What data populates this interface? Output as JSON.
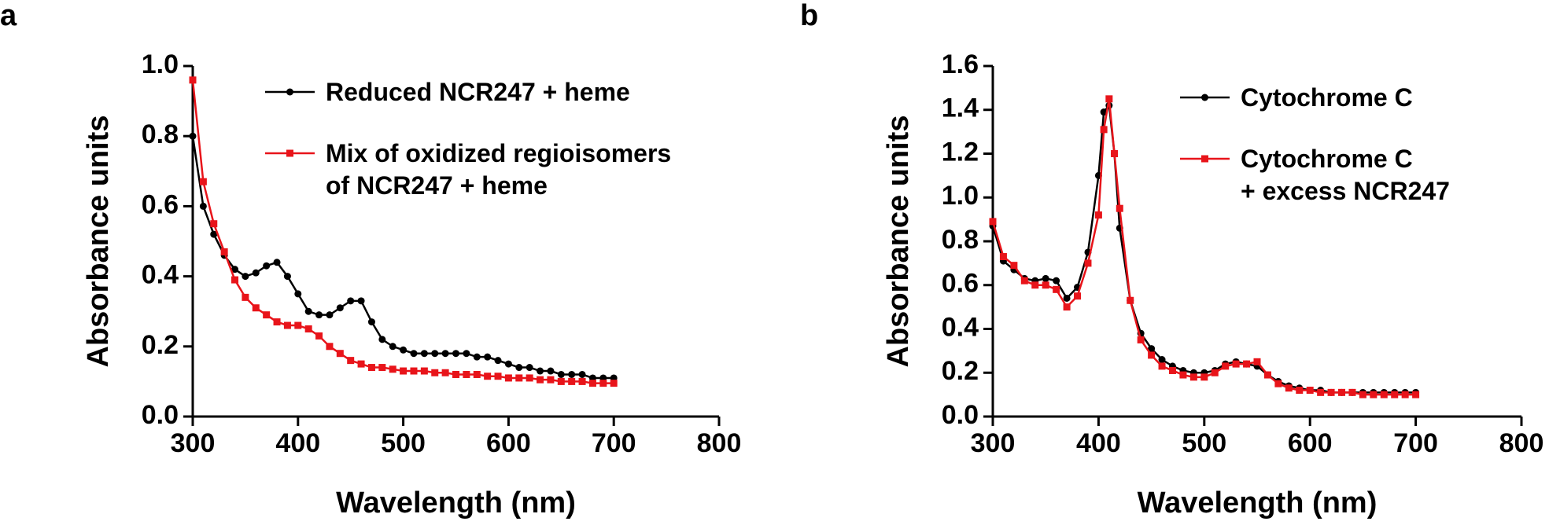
{
  "chart_data": [
    {
      "type": "line",
      "panel": "a",
      "x_label": "Wavelength (nm)",
      "y_label": "Absorbance units",
      "x": [
        300,
        310,
        320,
        330,
        340,
        350,
        360,
        370,
        380,
        390,
        400,
        410,
        420,
        430,
        440,
        450,
        460,
        470,
        480,
        490,
        500,
        510,
        520,
        530,
        540,
        550,
        560,
        570,
        580,
        590,
        600,
        610,
        620,
        630,
        640,
        650,
        660,
        670,
        680,
        690,
        700
      ],
      "series": [
        {
          "name": "Reduced NCR247 + heme",
          "color": "#000000",
          "marker": "circle",
          "values": [
            0.8,
            0.6,
            0.52,
            0.46,
            0.42,
            0.4,
            0.41,
            0.43,
            0.44,
            0.4,
            0.35,
            0.3,
            0.29,
            0.29,
            0.31,
            0.33,
            0.33,
            0.27,
            0.22,
            0.2,
            0.19,
            0.18,
            0.18,
            0.18,
            0.18,
            0.18,
            0.18,
            0.17,
            0.17,
            0.16,
            0.15,
            0.14,
            0.14,
            0.13,
            0.13,
            0.12,
            0.12,
            0.12,
            0.11,
            0.11,
            0.11
          ]
        },
        {
          "name": "Mix of oxidized regioisomers\nof NCR247 + heme",
          "color": "#e8141a",
          "marker": "square",
          "values": [
            0.96,
            0.67,
            0.55,
            0.47,
            0.39,
            0.34,
            0.31,
            0.29,
            0.27,
            0.26,
            0.26,
            0.25,
            0.23,
            0.2,
            0.18,
            0.16,
            0.15,
            0.14,
            0.14,
            0.135,
            0.13,
            0.13,
            0.13,
            0.125,
            0.125,
            0.12,
            0.12,
            0.12,
            0.115,
            0.115,
            0.11,
            0.11,
            0.11,
            0.105,
            0.105,
            0.1,
            0.1,
            0.1,
            0.095,
            0.095,
            0.095
          ]
        }
      ],
      "xlim": [
        300,
        800
      ],
      "xticks": [
        300,
        400,
        500,
        600,
        700,
        800
      ],
      "ylim": [
        0,
        1
      ],
      "yticks": [
        {
          "value": 0,
          "label": "0.0"
        },
        0.2,
        0.4,
        0.6,
        0.8,
        {
          "value": 1,
          "label": "1.0"
        }
      ]
    },
    {
      "type": "line",
      "panel": "b",
      "x_label": "Wavelength (nm)",
      "y_label": "Absorbance units",
      "x": [
        300,
        310,
        320,
        330,
        340,
        350,
        360,
        370,
        380,
        390,
        400,
        405,
        410,
        415,
        420,
        430,
        440,
        450,
        460,
        470,
        480,
        490,
        500,
        510,
        520,
        530,
        540,
        550,
        560,
        570,
        580,
        590,
        600,
        610,
        620,
        630,
        640,
        650,
        660,
        670,
        680,
        690,
        700
      ],
      "series": [
        {
          "name": "Cytochrome C",
          "color": "#000000",
          "marker": "circle",
          "values": [
            0.87,
            0.71,
            0.67,
            0.63,
            0.62,
            0.63,
            0.62,
            0.54,
            0.59,
            0.75,
            1.1,
            1.39,
            1.42,
            1.2,
            0.86,
            0.53,
            0.38,
            0.31,
            0.26,
            0.23,
            0.21,
            0.2,
            0.2,
            0.21,
            0.24,
            0.25,
            0.24,
            0.23,
            0.19,
            0.16,
            0.14,
            0.13,
            0.12,
            0.12,
            0.11,
            0.11,
            0.11,
            0.11,
            0.11,
            0.11,
            0.11,
            0.11,
            0.11
          ]
        },
        {
          "name": "Cytochrome C\n+ excess NCR247",
          "color": "#e8141a",
          "marker": "square",
          "values": [
            0.89,
            0.73,
            0.69,
            0.62,
            0.6,
            0.6,
            0.58,
            0.5,
            0.55,
            0.7,
            0.92,
            1.31,
            1.45,
            1.2,
            0.95,
            0.53,
            0.35,
            0.28,
            0.23,
            0.21,
            0.19,
            0.18,
            0.18,
            0.2,
            0.23,
            0.24,
            0.24,
            0.25,
            0.19,
            0.15,
            0.13,
            0.12,
            0.12,
            0.11,
            0.11,
            0.11,
            0.11,
            0.1,
            0.1,
            0.1,
            0.1,
            0.1,
            0.1
          ]
        }
      ],
      "xlim": [
        300,
        800
      ],
      "xticks": [
        300,
        400,
        500,
        600,
        700,
        800
      ],
      "ylim": [
        0,
        1.6
      ],
      "yticks": [
        {
          "value": 0,
          "label": "0.0"
        },
        0.2,
        0.4,
        0.6,
        0.8,
        {
          "value": 1,
          "label": "1.0"
        },
        1.2,
        1.4,
        1.6
      ]
    }
  ]
}
